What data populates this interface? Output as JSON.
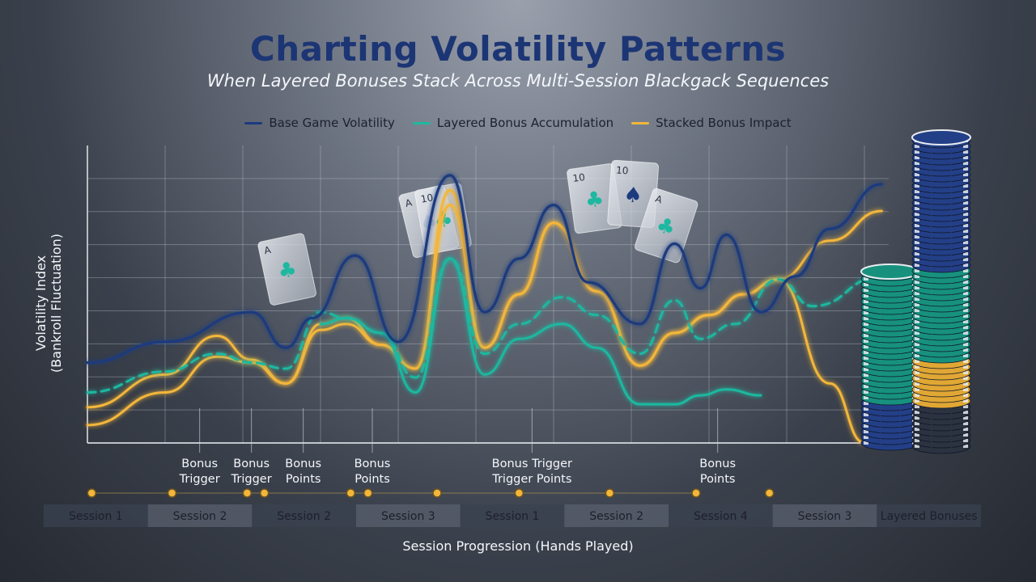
{
  "chart_data": {
    "type": "line",
    "title": "Charting Volatility Patterns",
    "subtitle": "When Layered Bonuses Stack Across Multi-Session Blackgack Sequences",
    "xlabel": "Session Progression (Hands Played)",
    "ylabel": "Volatility Index (Bankroll Fluctuation)",
    "ylabel_lines": [
      "Volatility Index",
      "(Bankroll Fluctuation)"
    ],
    "categories": [
      "Session 1",
      "Session 2",
      "Session 2",
      "Session 3",
      "Session 1",
      "Session 2",
      "Session 4",
      "Session 3",
      "Layered Bonuses"
    ],
    "xlim": [
      0,
      9
    ],
    "ylim": [
      0,
      100
    ],
    "grid": true,
    "legend_position": "top-center",
    "series": [
      {
        "name": "Base Game Volatility",
        "color": "#1c3a7e",
        "style": "solid",
        "x": [
          0.0,
          0.9,
          1.9,
          2.3,
          2.6,
          3.1,
          3.6,
          4.2,
          4.6,
          5.0,
          5.4,
          5.8,
          6.4,
          6.8,
          7.1,
          7.4,
          7.8,
          8.2,
          8.6,
          9.2
        ],
        "y": [
          27,
          34,
          44,
          32,
          42,
          63,
          34,
          90,
          44,
          62,
          80,
          54,
          40,
          67,
          52,
          70,
          44,
          56,
          72,
          87
        ]
      },
      {
        "name": "Layered Bonus Accumulation",
        "color": "#1eb8a0",
        "style": "dashed",
        "x": [
          0.0,
          0.9,
          1.5,
          1.9,
          2.3,
          2.7,
          3.0,
          3.4,
          3.8,
          4.2,
          4.6,
          5.0,
          5.5,
          5.9,
          6.4,
          6.8,
          7.1,
          7.5,
          8.0,
          8.4,
          9.2
        ],
        "y": [
          17,
          24,
          30,
          27,
          25,
          44,
          42,
          37,
          22,
          62,
          30,
          40,
          49,
          43,
          30,
          48,
          35,
          40,
          55,
          46,
          56
        ]
      },
      {
        "name": "Layered Bonus Accumulation",
        "color": "#1eb8a0",
        "style": "solid",
        "x": [
          2.7,
          3.0,
          3.4,
          3.8,
          4.2,
          4.6,
          5.0,
          5.5,
          5.9,
          6.4,
          6.8,
          7.1,
          7.4,
          7.8
        ],
        "y": [
          40,
          42,
          37,
          17,
          62,
          23,
          35,
          40,
          32,
          13,
          13,
          16,
          18,
          16
        ]
      },
      {
        "name": "Stacked Bonus Impact",
        "color": "#f3b63a",
        "style": "solid",
        "x": [
          0.0,
          0.9,
          1.5,
          1.9,
          2.3,
          2.7,
          3.0,
          3.4,
          3.8,
          4.2,
          4.6,
          5.0,
          5.4,
          5.9,
          6.4,
          6.8,
          7.2,
          7.6,
          8.0,
          8.6,
          9.2
        ],
        "y": [
          12,
          23,
          36,
          28,
          20,
          40,
          42,
          33,
          25,
          80,
          32,
          50,
          74,
          51,
          26,
          37,
          43,
          50,
          55,
          68,
          78
        ]
      },
      {
        "name": "Stacked Bonus Impact",
        "color": "#f3b63a",
        "style": "solid",
        "x": [
          0.0,
          0.9,
          1.5,
          1.9,
          2.3,
          2.7,
          3.0,
          3.4,
          3.8,
          4.2,
          4.6,
          5.0,
          5.4,
          5.9,
          6.4,
          6.8,
          7.2,
          7.6,
          8.0,
          8.6,
          9.0
        ],
        "y": [
          6,
          17,
          29,
          27,
          20,
          38,
          40,
          33,
          25,
          85,
          32,
          50,
          74,
          51,
          26,
          37,
          43,
          50,
          55,
          20,
          0
        ]
      }
    ],
    "annotations": [
      {
        "lines": [
          "Bonus",
          "Trigger"
        ],
        "x": 1.3
      },
      {
        "lines": [
          "Bonus",
          "Trigger"
        ],
        "x": 1.9
      },
      {
        "lines": [
          "Bonus",
          "Points"
        ],
        "x": 2.5
      },
      {
        "lines": [
          "Bonus",
          "Points"
        ],
        "x": 3.3
      },
      {
        "lines": [
          "Bonus Trigger",
          "Trigger Points"
        ],
        "x": 5.15
      },
      {
        "lines": [
          "Bonus",
          "Points"
        ],
        "x": 7.3
      }
    ],
    "timeline_markers": [
      0.05,
      0.98,
      1.85,
      2.05,
      3.05,
      3.25,
      4.05,
      5.0,
      6.05,
      7.05,
      7.9
    ]
  }
}
